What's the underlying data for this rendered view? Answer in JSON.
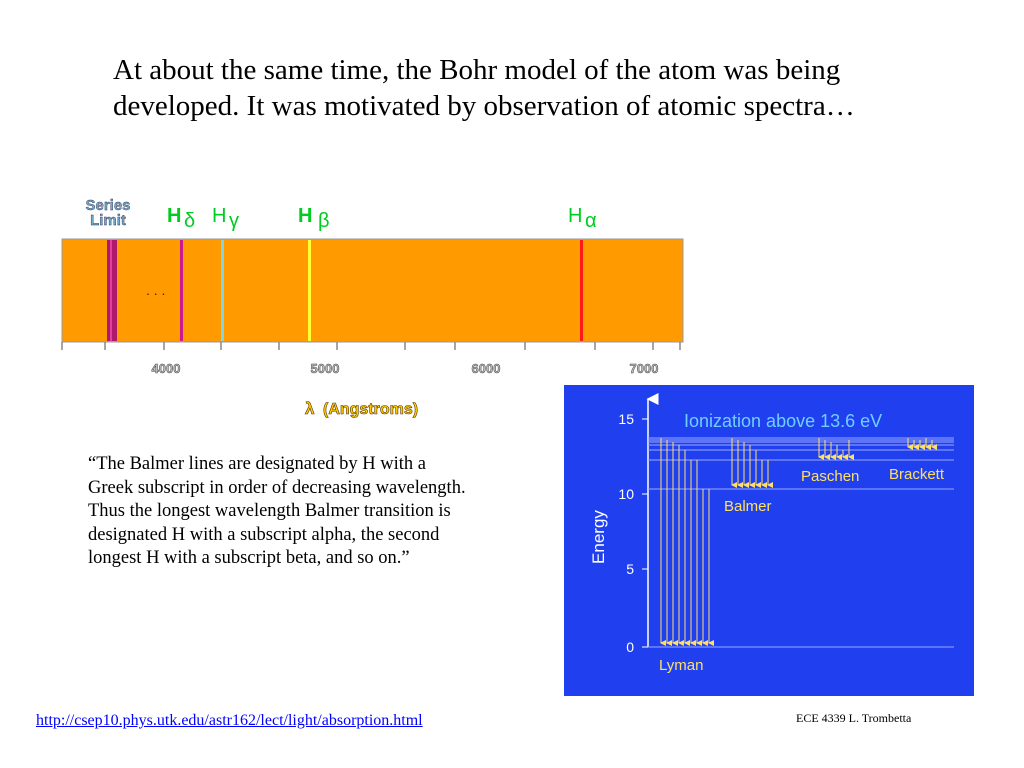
{
  "slide": {
    "heading": "At about the same time, the Bohr model of the atom was being developed.  It was motivated by observation of atomic spectra…",
    "quote": "“The Balmer lines are designated by H with a Greek subscript in order of decreasing wavelength. Thus the longest wavelength Balmer transition is designated H with a subscript alpha, the second longest H with a subscript beta, and so on.”",
    "source_url": "http://csep10.phys.utk.edu/astr162/lect/light/absorption.html",
    "credit": "ECE 4339  L. Trombetta"
  },
  "spectrum": {
    "series_limit_line1": "Series",
    "series_limit_line2": "Limit",
    "ellipsis": ". . .",
    "ticks": [
      "4000",
      "5000",
      "6000",
      "7000"
    ],
    "axis_symbol": "λ",
    "axis_unit": "(Angstroms)",
    "lines": [
      {
        "letter": "H",
        "subscript": "δ",
        "color": "#cc1a8c"
      },
      {
        "letter": "H",
        "subscript": "γ",
        "color": "#7fd6e6"
      },
      {
        "letter": "H",
        "subscript": "β",
        "color": "#ffff33"
      },
      {
        "letter": "H",
        "subscript": "α",
        "color": "#ff1a1a"
      }
    ],
    "colors": {
      "band": "#ff9a00",
      "label_green": "#00cc22",
      "series_limit": "#6fa8c8"
    }
  },
  "energy_diagram": {
    "title": "Ionization above 13.6 eV",
    "y_axis_label": "Energy",
    "y_ticks": [
      "15",
      "10",
      "5",
      "0"
    ],
    "series_labels": {
      "lyman": "Lyman",
      "balmer": "Balmer",
      "paschen": "Paschen",
      "brackett": "Brackett"
    },
    "colors": {
      "background": "#2040f0",
      "title": "#6fd0ff",
      "labels": "#ffe066",
      "arrows": "#ffe066"
    }
  }
}
